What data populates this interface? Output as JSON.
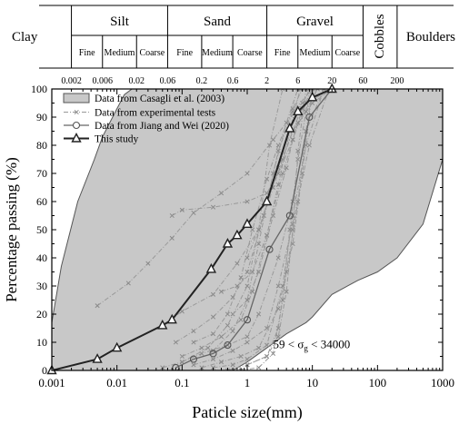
{
  "chart_data": {
    "type": "line",
    "xlabel": "Paticle size(mm)",
    "ylabel": "Percentage passing (%)",
    "x_scale": "log",
    "xlim": [
      0.001,
      1000
    ],
    "ylim": [
      0,
      100
    ],
    "x_ticks": [
      "0.001",
      "0.01",
      "0.1",
      "1",
      "10",
      "100",
      "1000"
    ],
    "x_tick_values": [
      0.001,
      0.01,
      0.1,
      1,
      10,
      100,
      1000
    ],
    "y_ticks": [
      "0",
      "10",
      "20",
      "30",
      "40",
      "50",
      "60",
      "70",
      "80",
      "90",
      "100"
    ],
    "y_tick_values": [
      0,
      10,
      20,
      30,
      40,
      50,
      60,
      70,
      80,
      90,
      100
    ],
    "legend_placement": "top-left",
    "annotation": {
      "text": "59 < σg < 34000",
      "prefix": "59 < σ",
      "sub": "g",
      "suffix": " < 34000",
      "x": 2.5,
      "y": 6
    },
    "classification": {
      "groups": [
        {
          "label": "Clay",
          "subgroups": []
        },
        {
          "label": "Silt",
          "subgroups": [
            "Fine",
            "Medium",
            "Coarse"
          ]
        },
        {
          "label": "Sand",
          "subgroups": [
            "Fine",
            "Medium",
            "Coarse"
          ]
        },
        {
          "label": "Gravel",
          "subgroups": [
            "Fine",
            "Medium",
            "Coarse"
          ]
        },
        {
          "label": "Cobbles",
          "subgroups": []
        },
        {
          "label": "Boulders",
          "subgroups": []
        }
      ],
      "boundaries": [
        0.002,
        0.006,
        0.02,
        0.06,
        0.2,
        0.6,
        2,
        6,
        20,
        60,
        200
      ],
      "boundary_labels": [
        "0.002",
        "0.006",
        "0.02",
        "0.06",
        "0.2",
        "0.6",
        "2",
        "6",
        "20",
        "60",
        "200"
      ]
    },
    "series": [
      {
        "name": "Data from Casagli et al. (2003)",
        "kind": "envelope",
        "color": "#c8c8c8",
        "upper": {
          "x": [
            0.001,
            0.0014,
            0.0025,
            0.0045,
            0.006,
            0.01,
            0.013,
            0.017,
            0.02
          ],
          "y": [
            17,
            37,
            60,
            75,
            83,
            93,
            98,
            100,
            100
          ]
        },
        "lower": {
          "x": [
            0.001,
            0.06,
            0.2,
            0.6,
            1.0,
            2.0,
            4.0,
            8.0,
            10.0,
            20.0,
            50.0,
            100.0,
            200.0,
            500.0,
            1000.0
          ],
          "y": [
            0,
            0,
            0,
            0,
            3,
            8,
            13,
            17,
            19,
            27,
            32,
            35,
            40,
            52,
            75
          ]
        },
        "extra_top": {
          "x": [
            0.02,
            20.0
          ],
          "y": [
            100,
            100
          ]
        }
      },
      {
        "name": "Data from experimental tests",
        "kind": "curves",
        "color": "#999999",
        "curves": [
          {
            "x": [
              0.005,
              0.015,
              0.03,
              0.07,
              0.15,
              0.4,
              1.0,
              2.5,
              7.0,
              20.0
            ],
            "y": [
              23,
              31,
              38,
              47,
              56,
              63,
              70,
              82,
              95,
              100
            ]
          },
          {
            "x": [
              0.07,
              0.1,
              0.3,
              1.0,
              2.0,
              3.0,
              5.0,
              8.0,
              20.0
            ],
            "y": [
              55,
              57,
              58,
              60,
              63,
              70,
              82,
              95,
              100
            ]
          },
          {
            "x": [
              0.05,
              0.1,
              0.3,
              0.7,
              1.5,
              3.0,
              5.0,
              10.0,
              20.0
            ],
            "y": [
              16,
              21,
              27,
              38,
              50,
              72,
              85,
              95,
              100
            ]
          },
          {
            "x": [
              0.08,
              0.15,
              0.3,
              0.6,
              1.0,
              1.8,
              3.0,
              5.0,
              10.0
            ],
            "y": [
              10,
              14,
              19,
              26,
              35,
              55,
              78,
              92,
              100
            ]
          },
          {
            "x": [
              0.1,
              0.2,
              0.4,
              0.8,
              1.2,
              2.0,
              3.5,
              6.0,
              12.0
            ],
            "y": [
              5,
              8,
              12,
              18,
              28,
              48,
              70,
              88,
              100
            ]
          },
          {
            "x": [
              0.1,
              0.2,
              0.5,
              1.0,
              1.5,
              3.0,
              5.0,
              8.0,
              15.0
            ],
            "y": [
              3,
              6,
              9,
              12,
              20,
              40,
              60,
              85,
              100
            ]
          },
          {
            "x": [
              0.15,
              0.3,
              0.6,
              1.0,
              2.0,
              3.0,
              5.0,
              9.0,
              18.0
            ],
            "y": [
              2,
              4,
              7,
              10,
              15,
              30,
              52,
              80,
              100
            ]
          },
          {
            "x": [
              0.2,
              0.4,
              0.8,
              1.5,
              3.0,
              5.0,
              7.0,
              10.0
            ],
            "y": [
              1,
              3,
              5,
              8,
              22,
              45,
              70,
              100
            ]
          },
          {
            "x": [
              0.3,
              0.6,
              1.0,
              2.0,
              3.5,
              5.0,
              8.0,
              15.0
            ],
            "y": [
              1,
              2,
              4,
              9,
              30,
              55,
              80,
              100
            ]
          },
          {
            "x": [
              0.5,
              1.0,
              2.0,
              3.0,
              4.0,
              6.0,
              8.0,
              10.0
            ],
            "y": [
              0,
              2,
              5,
              15,
              35,
              60,
              85,
              100
            ]
          },
          {
            "x": [
              0.8,
              1.5,
              2.5,
              3.5,
              4.5,
              6.0,
              8.0,
              12.0
            ],
            "y": [
              0,
              1,
              6,
              25,
              50,
              75,
              92,
              100
            ]
          },
          {
            "x": [
              0.15,
              0.3,
              0.5,
              0.8,
              1.2,
              2.0,
              3.0,
              5.0,
              7.0
            ],
            "y": [
              10,
              13,
              20,
              33,
              50,
              68,
              80,
              93,
              100
            ]
          },
          {
            "x": [
              0.6,
              1.0,
              1.5,
              2.5,
              4.0,
              5.0,
              7.0,
              10.0
            ],
            "y": [
              20,
              25,
              35,
              55,
              72,
              82,
              93,
              100
            ]
          },
          {
            "x": [
              1.0,
              1.8,
              2.5,
              3.5,
              5.0,
              6.5,
              9.0
            ],
            "y": [
              40,
              55,
              65,
              75,
              85,
              92,
              100
            ]
          },
          {
            "x": [
              0.3,
              0.6,
              1.0,
              1.5,
              2.5,
              4.0,
              6.0
            ],
            "y": [
              7,
              14,
              25,
              45,
              70,
              88,
              100
            ]
          },
          {
            "x": [
              0.4,
              0.7,
              1.2,
              2.0,
              3.0,
              4.5,
              6.5
            ],
            "y": [
              28,
              30,
              35,
              48,
              66,
              85,
              100
            ]
          },
          {
            "x": [
              0.05,
              0.1,
              0.25,
              0.5,
              1.0,
              1.5,
              2.2,
              3.5
            ],
            "y": [
              1,
              3,
              8,
              16,
              30,
              50,
              80,
              100
            ]
          },
          {
            "x": [
              1.0,
              2.0,
              3.0,
              4.0,
              5.0,
              6.0,
              8.0
            ],
            "y": [
              2,
              5,
              12,
              28,
              50,
              78,
              100
            ]
          }
        ]
      },
      {
        "name": "Data from Jiang and Wei (2020)",
        "kind": "line-marker",
        "marker": "circle",
        "color": "#666666",
        "x": [
          0.08,
          0.15,
          0.3,
          0.5,
          1.0,
          2.2,
          4.5,
          9.0,
          20.0
        ],
        "y": [
          1,
          4,
          6,
          9,
          18,
          43,
          55,
          90,
          100
        ]
      },
      {
        "name": "This study",
        "kind": "line-marker",
        "marker": "triangle",
        "color": "#222222",
        "x": [
          0.001,
          0.005,
          0.01,
          0.05,
          0.07,
          0.28,
          0.5,
          0.7,
          1.0,
          2.0,
          4.5,
          6.0,
          10.0,
          20.0
        ],
        "y": [
          0,
          4,
          8,
          16,
          18,
          36,
          45,
          48,
          52,
          60,
          86,
          92,
          97,
          100
        ]
      }
    ]
  }
}
